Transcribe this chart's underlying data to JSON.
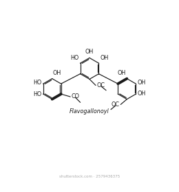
{
  "title": "Flavogallonoyl",
  "bg_color": "#ffffff",
  "line_color": "#1a1a1a",
  "text_color": "#1a1a1a",
  "label_fontsize": 5.8,
  "title_fontsize": 5.8,
  "figsize": [
    2.6,
    2.8
  ],
  "dpi": 100,
  "xlim": [
    0,
    10
  ],
  "ylim": [
    0,
    10
  ]
}
